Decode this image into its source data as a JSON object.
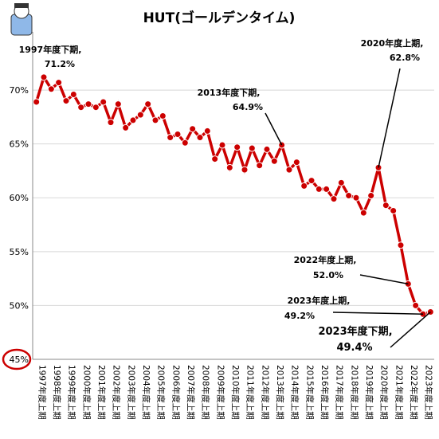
{
  "chart_data": {
    "type": "line",
    "title": "HUT(ゴールデンタイム)",
    "categories": [
      "1997年度上期",
      null,
      "1998年度上期",
      null,
      "1999年度上期",
      null,
      "2000年度上期",
      null,
      "2001年度上期",
      null,
      "2002年度上期",
      null,
      "2003年度上期",
      null,
      "2004年度上期",
      null,
      "2005年度上期",
      null,
      "2006年度上期",
      null,
      "2007年度上期",
      null,
      "2008年度上期",
      null,
      "2009年度上期",
      null,
      "2010年度上期",
      null,
      "2011年度上期",
      null,
      "2012年度上期",
      null,
      "2013年度上期",
      null,
      "2014年度上期",
      null,
      "2015年度上期",
      null,
      "2016年度上期",
      null,
      "2017年度上期",
      null,
      "2018年度上期",
      null,
      "2019年度上期",
      null,
      "2020年度上期",
      null,
      "2021年度上期",
      null,
      "2022年度上期",
      null,
      "2023年度上期",
      null
    ],
    "series": [
      {
        "name": "HUT",
        "color": "#cc0000",
        "values": [
          68.9,
          71.2,
          70.1,
          70.7,
          69.0,
          69.6,
          68.4,
          68.7,
          68.4,
          68.9,
          67.0,
          68.7,
          66.5,
          67.2,
          67.7,
          68.7,
          67.2,
          67.6,
          65.6,
          65.9,
          65.1,
          66.4,
          65.6,
          66.2,
          63.6,
          64.9,
          62.8,
          64.7,
          62.6,
          64.6,
          63.0,
          64.5,
          63.4,
          64.9,
          62.6,
          63.3,
          61.1,
          61.6,
          60.8,
          60.8,
          59.9,
          61.4,
          60.2,
          60.0,
          58.6,
          60.2,
          62.8,
          59.3,
          58.8,
          55.6,
          52.0,
          50.0,
          49.2,
          49.4
        ],
        "value_labels": [
          null,
          "71.2%",
          null,
          null,
          null,
          null,
          null,
          null,
          null,
          null,
          null,
          null,
          null,
          null,
          null,
          null,
          null,
          null,
          null,
          null,
          null,
          null,
          null,
          null,
          null,
          null,
          null,
          null,
          null,
          null,
          null,
          null,
          null,
          "64.9%",
          null,
          null,
          null,
          null,
          null,
          null,
          null,
          null,
          null,
          null,
          null,
          null,
          "62.8%",
          null,
          null,
          null,
          "52.0%",
          null,
          "49.2%",
          "49.4%"
        ]
      }
    ],
    "annotations": [
      "1997年度下期,",
      "2013年度下期,",
      "2020年度上期,",
      "2022年度上期,",
      "2023年度上期,",
      "2023年度下期,"
    ],
    "ylim": [
      45,
      74
    ],
    "yticks": [
      {
        "value": 45,
        "label": "45%"
      },
      {
        "value": 50,
        "label": "50%"
      },
      {
        "value": 55,
        "label": "55%"
      },
      {
        "value": 60,
        "label": "60%"
      },
      {
        "value": 65,
        "label": "65%"
      },
      {
        "value": 70,
        "label": "70%"
      }
    ],
    "grid": true
  }
}
